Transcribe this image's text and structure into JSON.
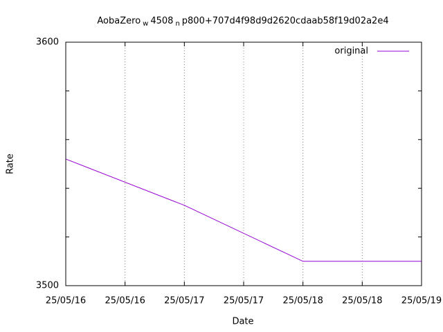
{
  "chart_data": {
    "type": "line",
    "title": [
      {
        "text": "AobaZero"
      },
      {
        "text": "w",
        "sub": true
      },
      {
        "text": "4508"
      },
      {
        "text": "n",
        "sub": true
      },
      {
        "text": "p800+707d4f98d9d2620cdaab58f19d02a2e4"
      }
    ],
    "x_label": "Date",
    "y_label": "Rate",
    "x": [
      0,
      2,
      4,
      6
    ],
    "series": [
      {
        "name": "original",
        "color": "#9400d3",
        "values": [
          3552,
          3533,
          3510,
          3510
        ]
      }
    ],
    "xlim": [
      0,
      6
    ],
    "xticks": [
      {
        "value": 0,
        "label": "25/05/16"
      },
      {
        "value": 1,
        "label": "25/05/16"
      },
      {
        "value": 2,
        "label": "25/05/17"
      },
      {
        "value": 3,
        "label": "25/05/17"
      },
      {
        "value": 4,
        "label": "25/05/18"
      },
      {
        "value": 5,
        "label": "25/05/18"
      },
      {
        "value": 6,
        "label": "25/05/19"
      }
    ],
    "ylim": [
      3500,
      3600
    ],
    "yticks": [
      3500,
      3600
    ],
    "yminorticks": [
      3520,
      3540,
      3560,
      3580
    ],
    "grid": "x",
    "legend": "top-right"
  }
}
